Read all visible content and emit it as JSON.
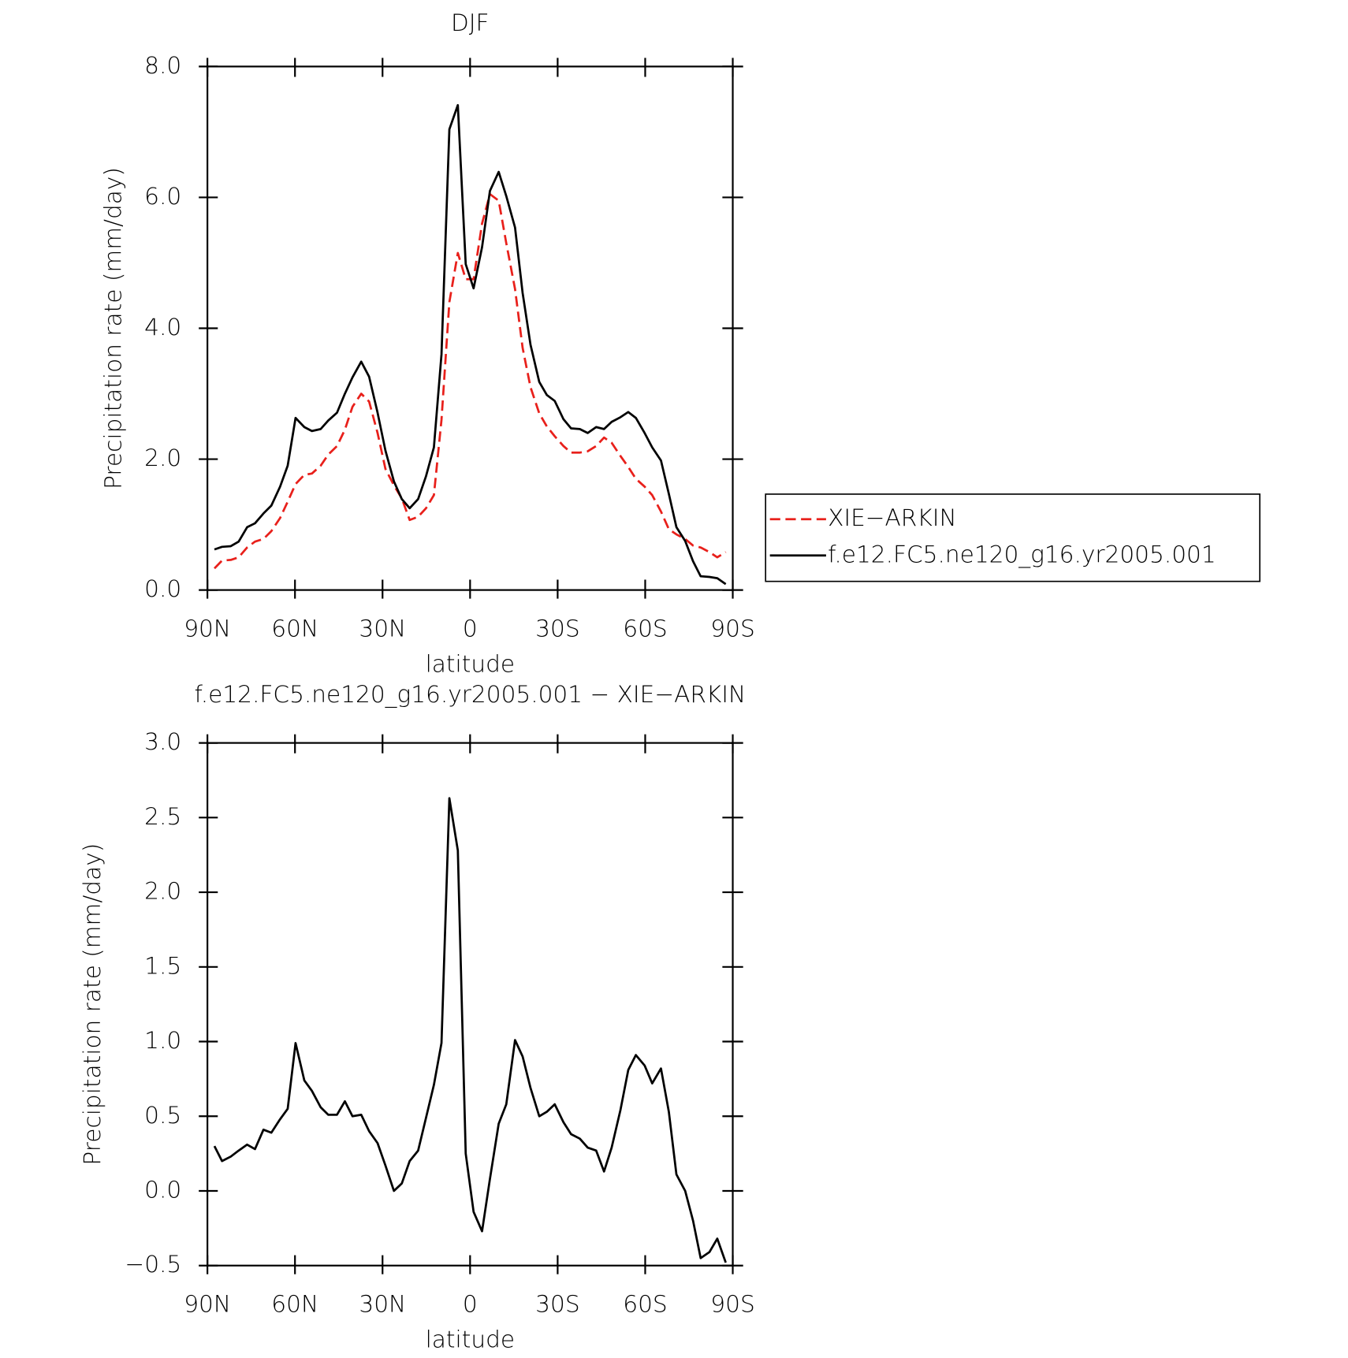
{
  "chart_data": [
    {
      "type": "line",
      "title": "DJF",
      "xlabel": "latitude",
      "ylabel": "Precipitation rate (mm/day)",
      "x": [
        87.6,
        85,
        82,
        79.3,
        76.4,
        73.7,
        70.8,
        68.1,
        65.1,
        62.5,
        59.8,
        56.8,
        54.2,
        51.2,
        48.6,
        45.6,
        42.9,
        40.3,
        37.3,
        34.6,
        31.7,
        29,
        26.1,
        23.4,
        20.7,
        17.8,
        15.1,
        12.4,
        9.8,
        7.1,
        4.2,
        1.5,
        -1.2,
        -4.1,
        -6.8,
        -9.8,
        -12.4,
        -15.4,
        -18,
        -20.7,
        -23.7,
        -26.3,
        -29,
        -32,
        -34.6,
        -37.6,
        -40.3,
        -43.2,
        -45.9,
        -48.5,
        -51.5,
        -54.2,
        -56.8,
        -59.8,
        -62.4,
        -65.4,
        -68.1,
        -70.7,
        -73.7,
        -76.4,
        -79,
        -82,
        -84.7,
        -87.6
      ],
      "series": [
        {
          "name": "XIE−ARKIN",
          "color": "#e8201b",
          "dashed": true,
          "values": [
            0.33,
            0.45,
            0.46,
            0.5,
            0.65,
            0.74,
            0.78,
            0.9,
            1.1,
            1.35,
            1.62,
            1.76,
            1.78,
            1.9,
            2.07,
            2.2,
            2.45,
            2.8,
            3.0,
            2.88,
            2.4,
            1.85,
            1.6,
            1.4,
            1.07,
            1.12,
            1.25,
            1.45,
            2.6,
            4.4,
            5.15,
            4.75,
            4.75,
            5.6,
            6.05,
            5.95,
            5.3,
            4.6,
            3.7,
            3.1,
            2.7,
            2.5,
            2.35,
            2.2,
            2.1,
            2.1,
            2.12,
            2.2,
            2.33,
            2.25,
            2.05,
            1.88,
            1.7,
            1.58,
            1.45,
            1.2,
            0.93,
            0.85,
            0.78,
            0.68,
            0.65,
            0.58,
            0.5,
            0.58
          ]
        },
        {
          "name": "f.e12.FC5.ne120_g16.yr2005.001",
          "color": "#000000",
          "dashed": false,
          "values": [
            0.62,
            0.66,
            0.67,
            0.74,
            0.96,
            1.02,
            1.17,
            1.29,
            1.58,
            1.9,
            2.63,
            2.49,
            2.43,
            2.46,
            2.59,
            2.71,
            3.0,
            3.25,
            3.49,
            3.26,
            2.71,
            2.13,
            1.66,
            1.39,
            1.25,
            1.39,
            1.74,
            2.18,
            3.6,
            7.04,
            7.41,
            4.98,
            4.61,
            5.24,
            6.1,
            6.39,
            6.02,
            5.54,
            4.54,
            3.75,
            3.18,
            2.98,
            2.89,
            2.61,
            2.47,
            2.46,
            2.4,
            2.49,
            2.46,
            2.57,
            2.64,
            2.72,
            2.63,
            2.4,
            2.18,
            1.98,
            1.47,
            0.96,
            0.75,
            0.44,
            0.21,
            0.2,
            0.18,
            0.09
          ]
        }
      ],
      "xlim": [
        90,
        -90
      ],
      "xticks": [
        {
          "value": 90,
          "label": "90N"
        },
        {
          "value": 60,
          "label": "60N"
        },
        {
          "value": 30,
          "label": "30N"
        },
        0,
        {
          "value": -30,
          "label": "30S"
        },
        {
          "value": -60,
          "label": "60S"
        },
        {
          "value": -90,
          "label": "90S"
        }
      ],
      "ylim": [
        0,
        8
      ],
      "yticks": [
        {
          "value": 0,
          "label": "0.0"
        },
        {
          "value": 2,
          "label": "2.0"
        },
        {
          "value": 4,
          "label": "4.0"
        },
        {
          "value": 6,
          "label": "6.0"
        },
        {
          "value": 8,
          "label": "8.0"
        }
      ],
      "legend": "right"
    },
    {
      "type": "line",
      "title": "f.e12.FC5.ne120_g16.yr2005.001 − XIE−ARKIN",
      "xlabel": "latitude",
      "ylabel": "Precipitation rate (mm/day)",
      "x": [
        87.6,
        85,
        82,
        79.3,
        76.4,
        73.7,
        70.8,
        68.1,
        65.1,
        62.5,
        59.8,
        56.8,
        54.2,
        51.2,
        48.6,
        45.6,
        42.9,
        40.3,
        37.3,
        34.6,
        31.7,
        29,
        26.1,
        23.4,
        20.7,
        17.8,
        15.1,
        12.4,
        9.8,
        7.1,
        4.2,
        1.5,
        -1.2,
        -4.1,
        -6.8,
        -9.8,
        -12.4,
        -15.4,
        -18,
        -20.7,
        -23.7,
        -26.3,
        -29,
        -32,
        -34.6,
        -37.6,
        -40.3,
        -43.2,
        -45.9,
        -48.5,
        -51.5,
        -54.2,
        -56.8,
        -59.8,
        -62.4,
        -65.4,
        -68.1,
        -70.7,
        -73.7,
        -76.4,
        -79,
        -82,
        -84.7,
        -87.6
      ],
      "values": [
        0.3,
        0.2,
        0.23,
        0.27,
        0.31,
        0.28,
        0.41,
        0.39,
        0.48,
        0.55,
        0.99,
        0.74,
        0.67,
        0.56,
        0.51,
        0.51,
        0.6,
        0.5,
        0.51,
        0.4,
        0.32,
        0.17,
        0.0,
        0.05,
        0.2,
        0.27,
        0.49,
        0.71,
        0.99,
        2.63,
        2.28,
        0.25,
        -0.14,
        -0.27,
        0.08,
        0.45,
        0.58,
        1.01,
        0.9,
        0.69,
        0.5,
        0.53,
        0.58,
        0.46,
        0.38,
        0.35,
        0.29,
        0.27,
        0.13,
        0.29,
        0.54,
        0.81,
        0.91,
        0.84,
        0.72,
        0.82,
        0.53,
        0.11,
        0.0,
        -0.2,
        -0.45,
        -0.41,
        -0.32,
        -0.48
      ],
      "color": "#000000",
      "xlim": [
        90,
        -90
      ],
      "xticks": [
        {
          "value": 90,
          "label": "90N"
        },
        {
          "value": 60,
          "label": "60N"
        },
        {
          "value": 30,
          "label": "30N"
        },
        0,
        {
          "value": -30,
          "label": "30S"
        },
        {
          "value": -60,
          "label": "60S"
        },
        {
          "value": -90,
          "label": "90S"
        }
      ],
      "ylim": [
        -0.5,
        3
      ],
      "yticks": [
        {
          "value": -0.5,
          "label": "−0.5"
        },
        {
          "value": 0,
          "label": "0.0"
        },
        {
          "value": 0.5,
          "label": "0.5"
        },
        {
          "value": 1,
          "label": "1.0"
        },
        {
          "value": 1.5,
          "label": "1.5"
        },
        {
          "value": 2,
          "label": "2.0"
        },
        {
          "value": 2.5,
          "label": "2.5"
        },
        {
          "value": 3,
          "label": "3.0"
        }
      ]
    }
  ]
}
